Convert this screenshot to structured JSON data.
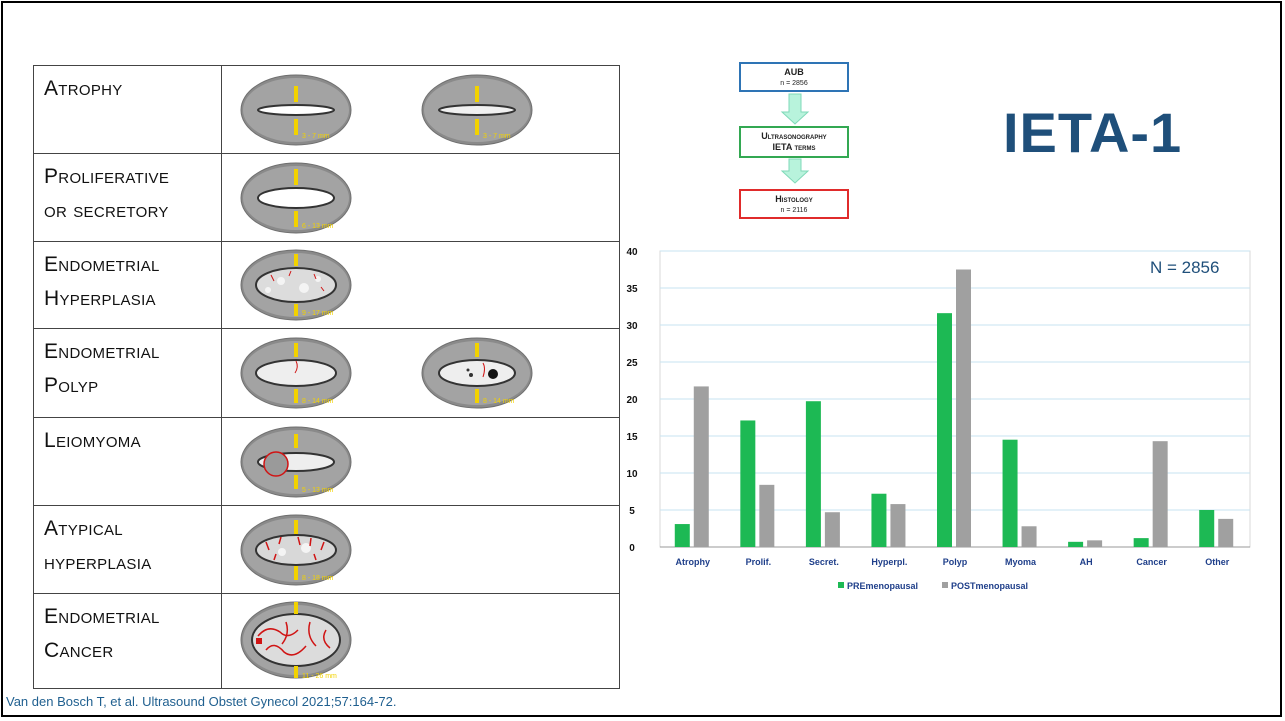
{
  "table": {
    "rows": [
      {
        "key": "atrophy",
        "lines": [
          "Atrophy"
        ],
        "measures": [
          "3 - 7 mm",
          "3 - 7 mm"
        ]
      },
      {
        "key": "proliferative",
        "lines": [
          "Proliferative",
          "or secretory"
        ],
        "measures": [
          "6 - 13 mm"
        ]
      },
      {
        "key": "hyperplasia",
        "lines": [
          "Endometrial",
          "Hyperplasia"
        ],
        "measures": [
          "9 - 17 mm"
        ]
      },
      {
        "key": "polyp",
        "lines": [
          "Endometrial",
          "Polyp"
        ],
        "measures": [
          "8 - 14 mm",
          "8 - 14 mm"
        ]
      },
      {
        "key": "leiomyoma",
        "lines": [
          "Leiomyoma"
        ],
        "measures": [
          "5 - 13 mm"
        ]
      },
      {
        "key": "atypical",
        "lines": [
          "Atypical",
          "hyperplasia"
        ],
        "measures": [
          "8 - 18 mm"
        ]
      },
      {
        "key": "cancer",
        "lines": [
          "Endometrial",
          "Cancer"
        ],
        "measures": [
          "11 - 26 mm"
        ]
      }
    ]
  },
  "flow": {
    "box1": {
      "title": "AUB",
      "count": "n = 2856",
      "color": "#2e74b5"
    },
    "box2": {
      "title": "Ultrasonography",
      "subtitle": "IETA terms",
      "color": "#33a852"
    },
    "box3": {
      "title": "Histology",
      "count": "n = 2116",
      "color": "#e02b2b"
    }
  },
  "title": "IETA-1",
  "n_label": "N = 2856",
  "citation": "Van den Bosch T, et al. Ultrasound Obstet Gynecol 2021;57:164-72.",
  "colors": {
    "green": "#1db954",
    "gray": "#a0a0a0",
    "title": "#1f4f7a"
  },
  "chart_data": {
    "type": "bar",
    "categories": [
      "Atrophy",
      "Prolif.",
      "Secret.",
      "Hyperpl.",
      "Polyp",
      "Myoma",
      "AH",
      "Cancer",
      "Other"
    ],
    "series": [
      {
        "name": "PREmenopausal",
        "values": [
          3.1,
          17.1,
          19.7,
          7.2,
          31.6,
          14.5,
          0.7,
          1.2,
          5.0
        ]
      },
      {
        "name": "POSTmenopausal",
        "values": [
          21.7,
          8.4,
          4.7,
          5.8,
          37.5,
          2.8,
          0.9,
          14.3,
          3.8
        ]
      }
    ],
    "yticks": [
      "0",
      "5",
      "10",
      "15",
      "20",
      "25",
      "30",
      "35",
      "40"
    ],
    "ylim": [
      0,
      40
    ],
    "grid": true,
    "legend": "bottom"
  }
}
